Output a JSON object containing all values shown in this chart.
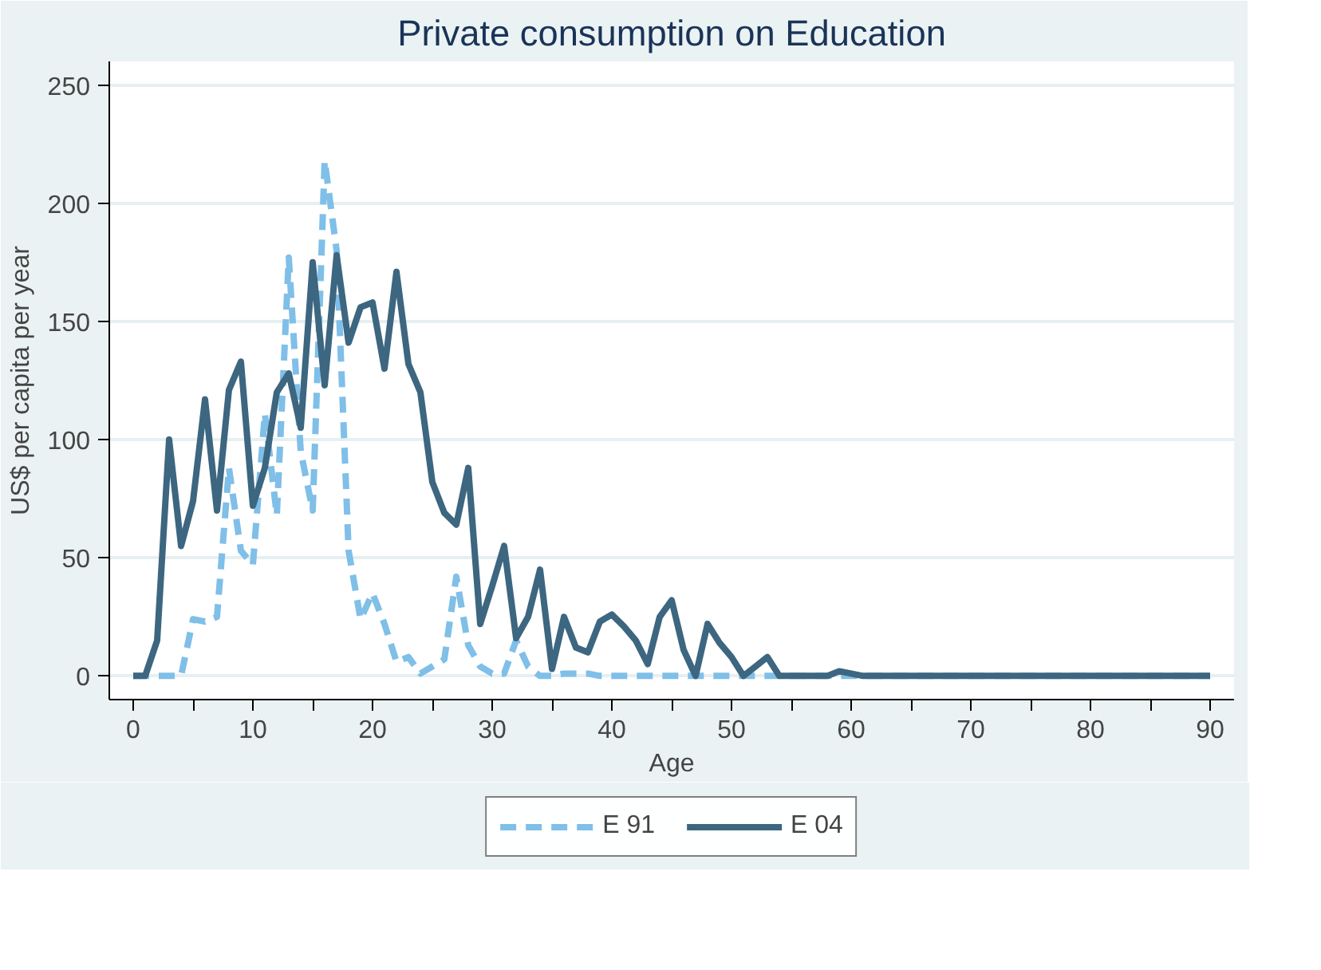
{
  "chart_data": {
    "type": "line",
    "title": "Private consumption on Education",
    "xlabel": "Age",
    "ylabel": "US$ per capita per year",
    "x": [
      0,
      1,
      2,
      3,
      4,
      5,
      6,
      7,
      8,
      9,
      10,
      11,
      12,
      13,
      14,
      15,
      16,
      17,
      18,
      19,
      20,
      21,
      22,
      23,
      24,
      25,
      26,
      27,
      28,
      29,
      30,
      31,
      32,
      33,
      34,
      35,
      36,
      37,
      38,
      39,
      40,
      41,
      42,
      43,
      44,
      45,
      46,
      47,
      48,
      49,
      50,
      51,
      52,
      53,
      54,
      55,
      56,
      57,
      58,
      59,
      60,
      61,
      62,
      63,
      64,
      65,
      66,
      67,
      68,
      69,
      70,
      71,
      72,
      73,
      74,
      75,
      76,
      77,
      78,
      79,
      80,
      81,
      82,
      83,
      84,
      85,
      86,
      87,
      88,
      89,
      90
    ],
    "series": [
      {
        "name": "E 91",
        "color": "#7fbfe8",
        "line_style": "dashed",
        "values": [
          0,
          0,
          0,
          0,
          0,
          24,
          23,
          25,
          88,
          53,
          47,
          111,
          68,
          177,
          95,
          70,
          218,
          180,
          53,
          24,
          35,
          22,
          6,
          8,
          1,
          4,
          7,
          42,
          13,
          4,
          1,
          1,
          15,
          4,
          0,
          0,
          1,
          1,
          1,
          0,
          0,
          0,
          0,
          0,
          0,
          0,
          0,
          0,
          0,
          0,
          0,
          0,
          0,
          0,
          0,
          0,
          0,
          0,
          0,
          0,
          0,
          0,
          0,
          0,
          0,
          0,
          0,
          0,
          0,
          0,
          0,
          0,
          0,
          0,
          0,
          0,
          0,
          0,
          0,
          0,
          0,
          0,
          0,
          0,
          0,
          0,
          0,
          0,
          0,
          0,
          0
        ]
      },
      {
        "name": "E 04",
        "color": "#3d6680",
        "line_style": "solid",
        "values": [
          0,
          0,
          15,
          100,
          55,
          74,
          117,
          70,
          121,
          133,
          72,
          88,
          120,
          128,
          105,
          175,
          123,
          178,
          141,
          156,
          158,
          130,
          171,
          132,
          120,
          82,
          69,
          64,
          88,
          22,
          38,
          55,
          16,
          25,
          45,
          3,
          25,
          12,
          10,
          23,
          26,
          21,
          15,
          5,
          25,
          32,
          11,
          0,
          22,
          14,
          8,
          0,
          4,
          8,
          0,
          0,
          0,
          0,
          0,
          2,
          1,
          0,
          0,
          0,
          0,
          0,
          0,
          0,
          0,
          0,
          0,
          0,
          0,
          0,
          0,
          0,
          0,
          0,
          0,
          0,
          0,
          0,
          0,
          0,
          0,
          0,
          0,
          0,
          0,
          0,
          0
        ]
      }
    ],
    "xlim": [
      -2,
      92
    ],
    "ylim": [
      -10,
      260
    ],
    "xticks": [
      0,
      {
        "value": 5,
        "label": null
      },
      10,
      {
        "value": 15,
        "label": null
      },
      20,
      {
        "value": 25,
        "label": null
      },
      30,
      {
        "value": 35,
        "label": null
      },
      40,
      {
        "value": 45,
        "label": null
      },
      50,
      {
        "value": 55,
        "label": null
      },
      60,
      {
        "value": 65,
        "label": null
      },
      70,
      {
        "value": 75,
        "label": null
      },
      80,
      {
        "value": 85,
        "label": null
      },
      90
    ],
    "yticks": [
      0,
      50,
      100,
      150,
      200,
      250
    ],
    "grid": "y",
    "legend": "bottom"
  }
}
